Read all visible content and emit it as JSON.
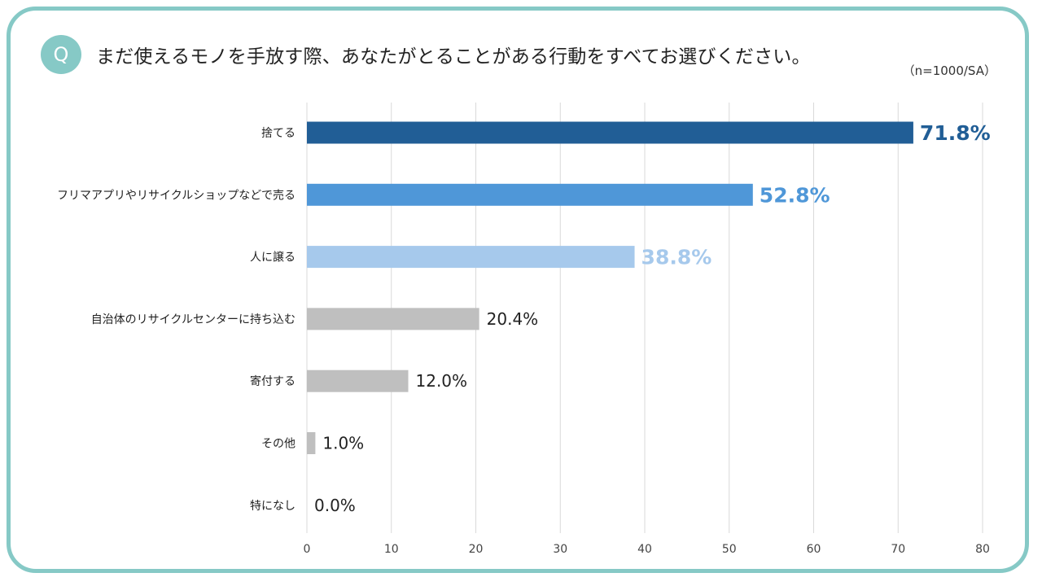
{
  "header": {
    "badge": "Q",
    "question": "まだ使えるモノを手放す際、あなたがとることがある行動をすべてお選びください。",
    "sample_note": "（n=1000/SA）"
  },
  "chart_data": {
    "type": "bar",
    "orientation": "horizontal",
    "title": "まだ使えるモノを手放す際、あなたがとることがある行動をすべてお選びください。",
    "categories": [
      "捨てる",
      "フリマアプリやリサイクルショップなどで売る",
      "人に譲る",
      "自治体のリサイクルセンターに持ち込む",
      "寄付する",
      "その他",
      "特になし"
    ],
    "values": [
      71.8,
      52.8,
      38.8,
      20.4,
      12.0,
      1.0,
      0.0
    ],
    "value_labels": [
      "71.8%",
      "52.8%",
      "38.8%",
      "20.4%",
      "12.0%",
      "1.0%",
      "0.0%"
    ],
    "bar_colors": [
      "#215e96",
      "#4f97d8",
      "#a6c9ec",
      "#bfbfbf",
      "#bfbfbf",
      "#bfbfbf",
      "#bfbfbf"
    ],
    "label_colors": [
      "#215e96",
      "#4f97d8",
      "#a6c9ec",
      "#222222",
      "#222222",
      "#222222",
      "#222222"
    ],
    "xlim": [
      0,
      80
    ],
    "xticks": [
      0,
      10,
      20,
      30,
      40,
      50,
      60,
      70,
      80
    ],
    "xlabel": "",
    "ylabel": "",
    "grid": true
  }
}
